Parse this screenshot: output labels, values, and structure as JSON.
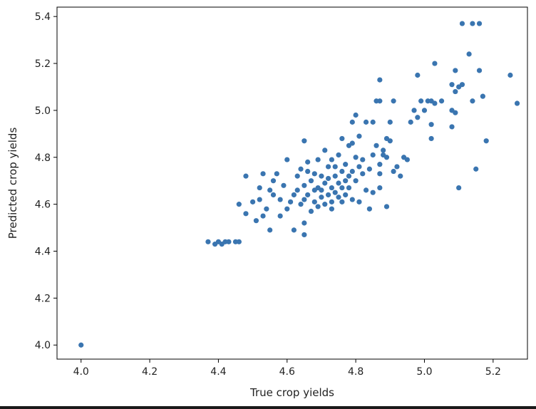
{
  "chart_data": {
    "type": "scatter",
    "title": "",
    "xlabel": "True crop yields",
    "ylabel": "Predicted crop yields",
    "xlim": [
      3.93,
      5.3
    ],
    "ylim": [
      3.94,
      5.44
    ],
    "xticks": [
      4.0,
      4.2,
      4.4,
      4.6,
      4.8,
      5.0,
      5.2
    ],
    "yticks": [
      4.0,
      4.2,
      4.4,
      4.6,
      4.8,
      5.0,
      5.2,
      5.4
    ],
    "grid": false,
    "marker_color": "#3a75b0",
    "series": [
      {
        "points": [
          [
            4.0,
            4.0
          ],
          [
            4.37,
            4.44
          ],
          [
            4.39,
            4.43
          ],
          [
            4.4,
            4.44
          ],
          [
            4.41,
            4.43
          ],
          [
            4.42,
            4.44
          ],
          [
            4.43,
            4.44
          ],
          [
            4.45,
            4.44
          ],
          [
            4.46,
            4.44
          ],
          [
            4.46,
            4.6
          ],
          [
            4.48,
            4.72
          ],
          [
            4.48,
            4.56
          ],
          [
            4.5,
            4.61
          ],
          [
            4.51,
            4.53
          ],
          [
            4.52,
            4.67
          ],
          [
            4.52,
            4.62
          ],
          [
            4.53,
            4.73
          ],
          [
            4.53,
            4.55
          ],
          [
            4.54,
            4.58
          ],
          [
            4.55,
            4.49
          ],
          [
            4.55,
            4.66
          ],
          [
            4.56,
            4.64
          ],
          [
            4.56,
            4.7
          ],
          [
            4.57,
            4.73
          ],
          [
            4.58,
            4.55
          ],
          [
            4.58,
            4.62
          ],
          [
            4.59,
            4.68
          ],
          [
            4.6,
            4.79
          ],
          [
            4.6,
            4.58
          ],
          [
            4.61,
            4.61
          ],
          [
            4.62,
            4.64
          ],
          [
            4.62,
            4.49
          ],
          [
            4.63,
            4.72
          ],
          [
            4.63,
            4.66
          ],
          [
            4.64,
            4.6
          ],
          [
            4.64,
            4.75
          ],
          [
            4.65,
            4.87
          ],
          [
            4.65,
            4.47
          ],
          [
            4.65,
            4.52
          ],
          [
            4.65,
            4.62
          ],
          [
            4.65,
            4.68
          ],
          [
            4.66,
            4.74
          ],
          [
            4.66,
            4.64
          ],
          [
            4.66,
            4.78
          ],
          [
            4.67,
            4.7
          ],
          [
            4.67,
            4.57
          ],
          [
            4.68,
            4.61
          ],
          [
            4.68,
            4.66
          ],
          [
            4.68,
            4.73
          ],
          [
            4.69,
            4.59
          ],
          [
            4.69,
            4.67
          ],
          [
            4.69,
            4.79
          ],
          [
            4.7,
            4.63
          ],
          [
            4.7,
            4.72
          ],
          [
            4.7,
            4.66
          ],
          [
            4.71,
            4.6
          ],
          [
            4.71,
            4.83
          ],
          [
            4.71,
            4.69
          ],
          [
            4.72,
            4.76
          ],
          [
            4.72,
            4.64
          ],
          [
            4.72,
            4.71
          ],
          [
            4.73,
            4.61
          ],
          [
            4.73,
            4.67
          ],
          [
            4.73,
            4.79
          ],
          [
            4.73,
            4.58
          ],
          [
            4.74,
            4.72
          ],
          [
            4.74,
            4.65
          ],
          [
            4.74,
            4.76
          ],
          [
            4.75,
            4.69
          ],
          [
            4.75,
            4.63
          ],
          [
            4.75,
            4.81
          ],
          [
            4.76,
            4.74
          ],
          [
            4.76,
            4.61
          ],
          [
            4.76,
            4.67
          ],
          [
            4.76,
            4.88
          ],
          [
            4.77,
            4.7
          ],
          [
            4.77,
            4.77
          ],
          [
            4.77,
            4.64
          ],
          [
            4.78,
            4.72
          ],
          [
            4.78,
            4.85
          ],
          [
            4.78,
            4.67
          ],
          [
            4.79,
            4.74
          ],
          [
            4.79,
            4.62
          ],
          [
            4.79,
            4.95
          ],
          [
            4.79,
            4.86
          ],
          [
            4.8,
            4.8
          ],
          [
            4.8,
            4.7
          ],
          [
            4.8,
            4.98
          ],
          [
            4.81,
            4.89
          ],
          [
            4.81,
            4.76
          ],
          [
            4.81,
            4.61
          ],
          [
            4.82,
            4.73
          ],
          [
            4.82,
            4.79
          ],
          [
            4.83,
            4.66
          ],
          [
            4.83,
            4.95
          ],
          [
            4.84,
            4.75
          ],
          [
            4.84,
            4.58
          ],
          [
            4.85,
            4.81
          ],
          [
            4.85,
            4.95
          ],
          [
            4.85,
            4.65
          ],
          [
            4.86,
            4.85
          ],
          [
            4.86,
            5.04
          ],
          [
            4.87,
            5.04
          ],
          [
            4.87,
            5.13
          ],
          [
            4.87,
            4.77
          ],
          [
            4.87,
            4.73
          ],
          [
            4.87,
            4.67
          ],
          [
            4.88,
            4.83
          ],
          [
            4.88,
            4.81
          ],
          [
            4.89,
            4.8
          ],
          [
            4.89,
            4.88
          ],
          [
            4.89,
            4.59
          ],
          [
            4.9,
            4.95
          ],
          [
            4.9,
            4.87
          ],
          [
            4.91,
            4.74
          ],
          [
            4.91,
            5.04
          ],
          [
            4.92,
            4.76
          ],
          [
            4.93,
            4.72
          ],
          [
            4.94,
            4.8
          ],
          [
            4.95,
            4.79
          ],
          [
            4.96,
            4.95
          ],
          [
            4.97,
            5.0
          ],
          [
            4.98,
            4.97
          ],
          [
            4.98,
            5.15
          ],
          [
            4.99,
            5.04
          ],
          [
            5.0,
            5.0
          ],
          [
            5.01,
            5.04
          ],
          [
            5.02,
            5.04
          ],
          [
            5.02,
            4.94
          ],
          [
            5.02,
            4.88
          ],
          [
            5.03,
            5.03
          ],
          [
            5.03,
            5.2
          ],
          [
            5.05,
            5.04
          ],
          [
            5.08,
            4.93
          ],
          [
            5.08,
            5.0
          ],
          [
            5.08,
            5.11
          ],
          [
            5.09,
            5.17
          ],
          [
            5.09,
            5.08
          ],
          [
            5.09,
            4.99
          ],
          [
            5.1,
            4.67
          ],
          [
            5.1,
            5.1
          ],
          [
            5.11,
            5.37
          ],
          [
            5.11,
            5.11
          ],
          [
            5.13,
            5.24
          ],
          [
            5.14,
            5.37
          ],
          [
            5.14,
            5.04
          ],
          [
            5.15,
            4.75
          ],
          [
            5.16,
            5.37
          ],
          [
            5.16,
            5.17
          ],
          [
            5.17,
            5.06
          ],
          [
            5.18,
            4.87
          ],
          [
            5.25,
            5.15
          ],
          [
            5.27,
            5.03
          ]
        ]
      }
    ]
  }
}
